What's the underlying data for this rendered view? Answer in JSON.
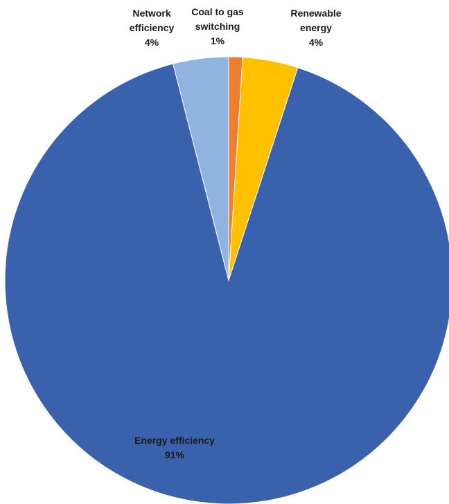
{
  "chart_data": {
    "type": "pie",
    "title": "",
    "slices": [
      {
        "label": "Coal to gas switching",
        "value": 1,
        "value_label": "1%",
        "color": "#ED7D31"
      },
      {
        "label": "Renewable energy",
        "value": 4,
        "value_label": "4%",
        "color": "#FFC000"
      },
      {
        "label": "Energy efficiency",
        "value": 91,
        "value_label": "91%",
        "color": "#3A62AC"
      },
      {
        "label": "Network efficiency",
        "value": 4,
        "value_label": "4%",
        "color": "#8FB4DF"
      }
    ],
    "legend": "none",
    "start_angle": "12 o'clock",
    "direction": "clockwise"
  }
}
